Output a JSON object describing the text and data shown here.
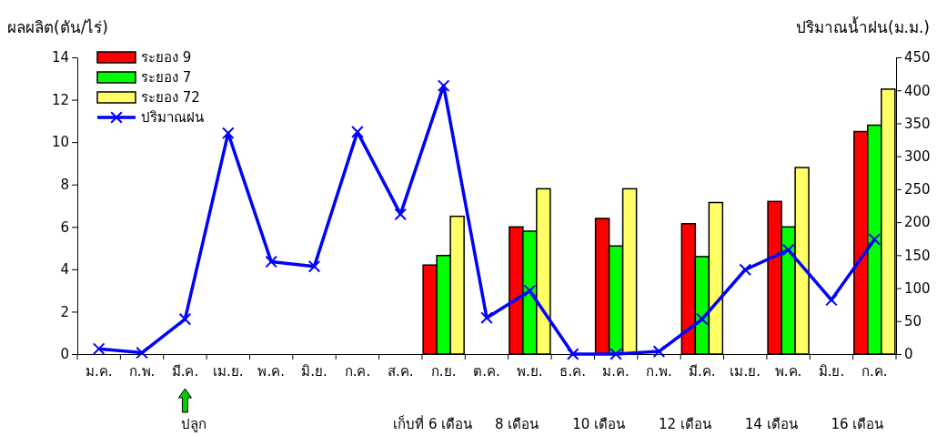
{
  "chart_data": {
    "type": "bar",
    "ylabel": "ผลผลิต(ตัน/ไร่)",
    "y2label": "ปริมาณน้ำฝน(ม.ม.)",
    "categories": [
      "ม.ค.",
      "ก.พ.",
      "มี.ค.",
      "เม.ย.",
      "พ.ค.",
      "มิ.ย.",
      "ก.ค.",
      "ส.ค.",
      "ก.ย.",
      "ต.ค.",
      "พ.ย.",
      "ธ.ค.",
      "ม.ค.",
      "ก.พ.",
      "มี.ค.",
      "เม.ย.",
      "พ.ค.",
      "มิ.ย.",
      "ก.ค."
    ],
    "series": [
      {
        "name": "ระยอง 9",
        "color": "#ff0000",
        "values": [
          null,
          null,
          null,
          null,
          null,
          null,
          null,
          null,
          4.2,
          null,
          6.0,
          null,
          6.4,
          null,
          6.15,
          null,
          7.2,
          null,
          10.5
        ]
      },
      {
        "name": "ระยอง 7",
        "color": "#00ff00",
        "values": [
          null,
          null,
          null,
          null,
          null,
          null,
          null,
          null,
          4.65,
          null,
          5.8,
          null,
          5.1,
          null,
          4.6,
          null,
          6.0,
          null,
          10.8
        ]
      },
      {
        "name": "ระยอง 72",
        "color": "#ffff66",
        "values": [
          null,
          null,
          null,
          null,
          null,
          null,
          null,
          null,
          6.5,
          null,
          7.8,
          null,
          7.8,
          null,
          7.15,
          null,
          8.8,
          null,
          12.5
        ]
      },
      {
        "name": "ปริมาณฝน",
        "type": "line",
        "axis": "y2",
        "color": "#0000ff",
        "marker": "cross",
        "values": [
          8,
          2,
          53,
          335,
          140,
          133,
          337,
          212,
          407,
          55,
          96,
          0,
          0,
          4,
          53,
          128,
          158,
          82,
          174
        ]
      }
    ],
    "ylim": [
      0,
      14
    ],
    "yticks": [
      0,
      2,
      4,
      6,
      8,
      10,
      12,
      14
    ],
    "y2lim": [
      0,
      450
    ],
    "y2ticks": [
      0,
      50,
      100,
      150,
      200,
      250,
      300,
      350,
      400,
      450
    ],
    "legend": "top left",
    "grid": false,
    "annotations": [
      "ปลูก",
      "เก็บที่ 6 เดือน",
      "8 เดือน",
      "10 เดือน",
      "12 เดือน",
      "14 เดือน",
      "16 เดือน"
    ]
  }
}
